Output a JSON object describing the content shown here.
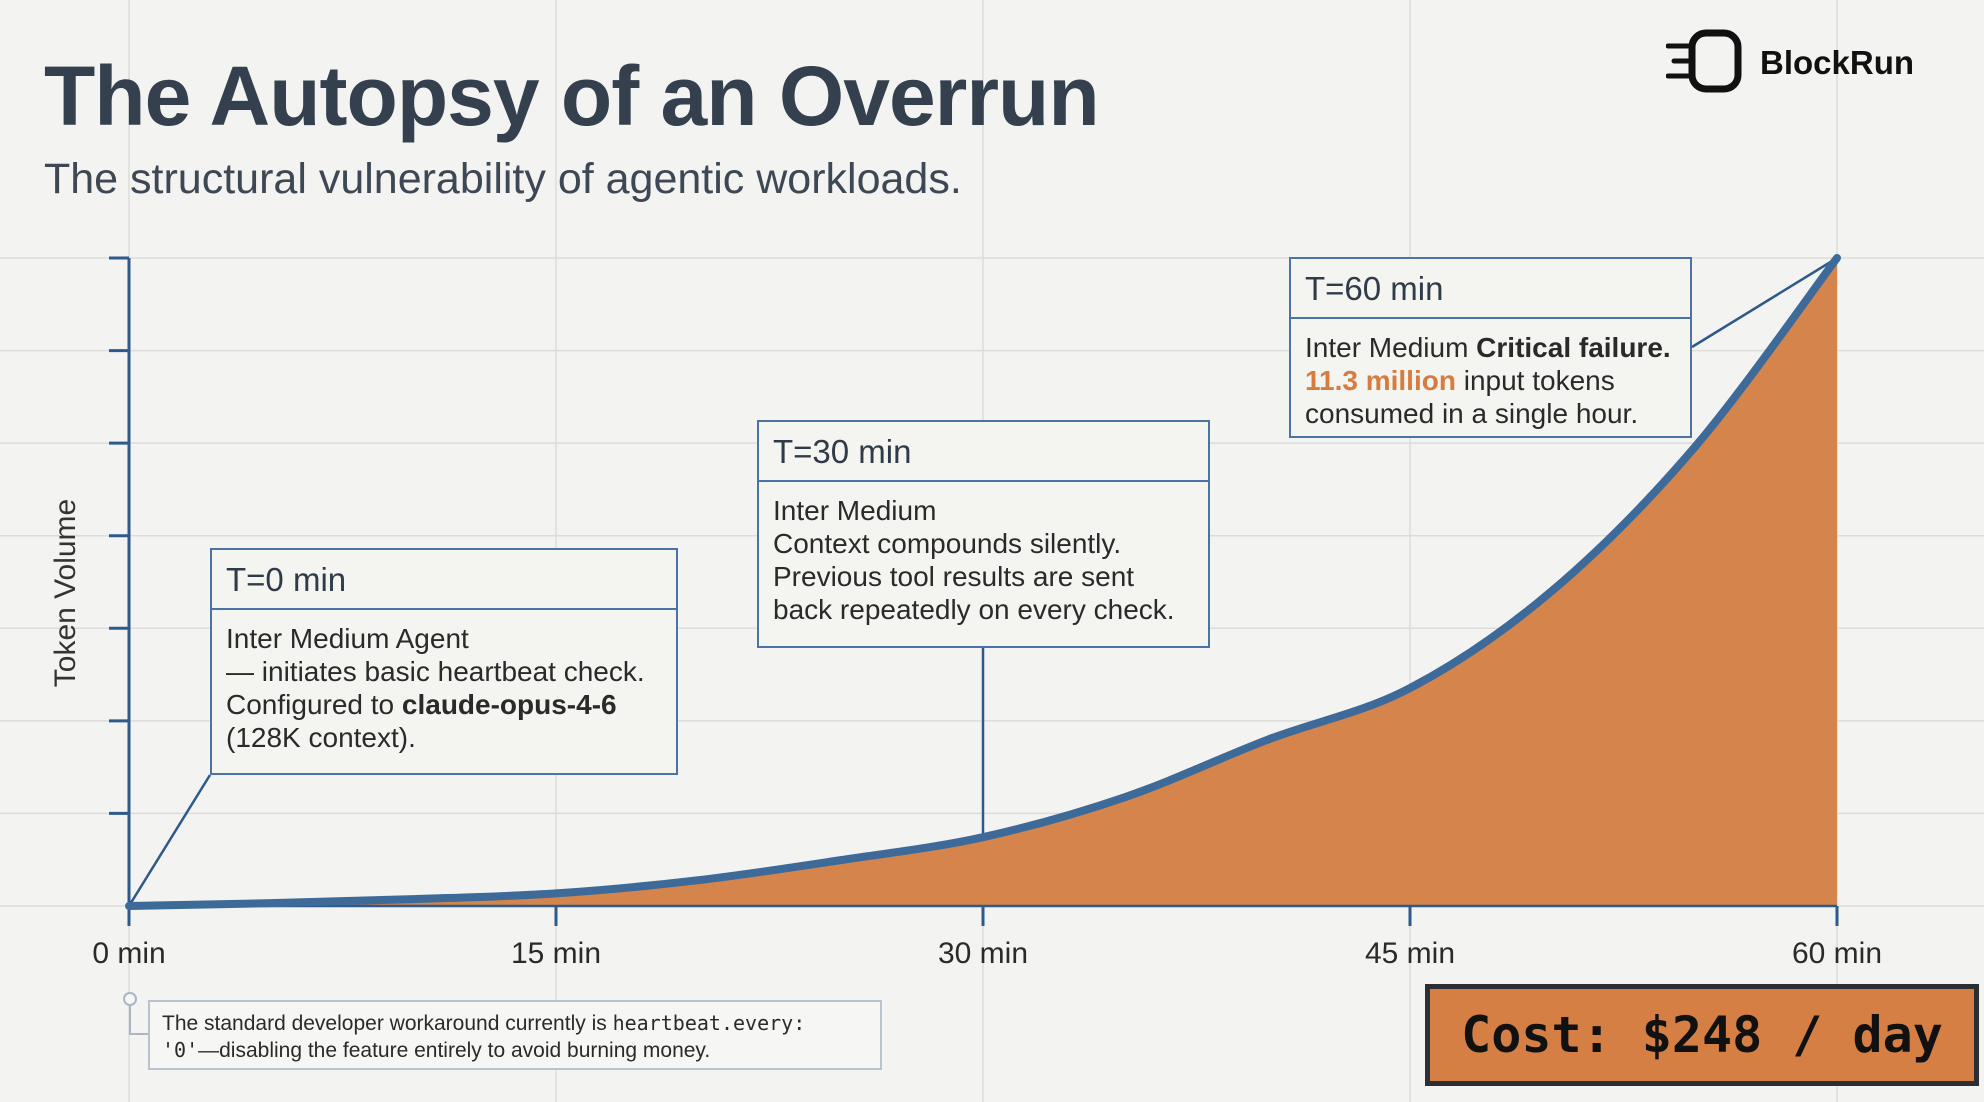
{
  "header": {
    "title": "The Autopsy of an Overrun",
    "subtitle": "The structural vulnerability of agentic workloads."
  },
  "brand": {
    "name": "BlockRun",
    "icon": "blockrun-logo-icon"
  },
  "colors": {
    "axis": "#2d5a8a",
    "curve": "#3e6a99",
    "fill": "#d5844c",
    "grid": "#dcdcdc",
    "accent": "#d77b3f",
    "cost_bg": "#d57f44"
  },
  "chart_data": {
    "type": "area",
    "xlabel": "",
    "ylabel": "Token Volume",
    "xlim": [
      0,
      60
    ],
    "ylim": [
      0,
      11.3
    ],
    "x_ticks": [
      {
        "value": 0,
        "label": "0 min"
      },
      {
        "value": 15,
        "label": "15 min"
      },
      {
        "value": 30,
        "label": "30 min"
      },
      {
        "value": 45,
        "label": "45 min"
      },
      {
        "value": 60,
        "label": "60 min"
      }
    ],
    "y_tick_count": 7,
    "grid": true,
    "series": [
      {
        "x": [
          0,
          5,
          10,
          15,
          20,
          25,
          30,
          35,
          40,
          45,
          50,
          55,
          60
        ],
        "y": [
          0,
          0.05,
          0.12,
          0.22,
          0.45,
          0.8,
          1.2,
          1.9,
          2.9,
          3.8,
          5.5,
          8.0,
          11.3
        ]
      }
    ],
    "annotations": [
      {
        "x": 0,
        "header": "T=0 min",
        "lines": [
          [
            {
              "text": "Inter Medium Agent"
            }
          ],
          [
            {
              "text": "— initiates basic heartbeat check."
            }
          ],
          [
            {
              "text": "Configured to "
            },
            {
              "text": "claude-opus-4-6",
              "style": "bold"
            }
          ],
          [
            {
              "text": "(128K context)."
            }
          ]
        ]
      },
      {
        "x": 30,
        "header": "T=30 min",
        "lines": [
          [
            {
              "text": "Inter Medium"
            }
          ],
          [
            {
              "text": "Context compounds silently."
            }
          ],
          [
            {
              "text": "Previous tool results are sent"
            }
          ],
          [
            {
              "text": "back repeatedly on every check."
            }
          ]
        ]
      },
      {
        "x": 60,
        "header": "T=60 min",
        "lines": [
          [
            {
              "text": "Inter Medium "
            },
            {
              "text": "Critical failure.",
              "style": "bold"
            }
          ],
          [
            {
              "text": "11.3 million",
              "style": "accent"
            },
            {
              "text": " input tokens"
            }
          ],
          [
            {
              "text": "consumed in a single hour."
            }
          ]
        ]
      }
    ]
  },
  "note": {
    "line1_prefix": "The standard developer workaround currently is ",
    "line1_code": "heartbeat.every:",
    "line2_code": "'0'",
    "line2_suffix": "—disabling the feature entirely to avoid burning money."
  },
  "cost": {
    "label": "Cost: $248 / day"
  }
}
